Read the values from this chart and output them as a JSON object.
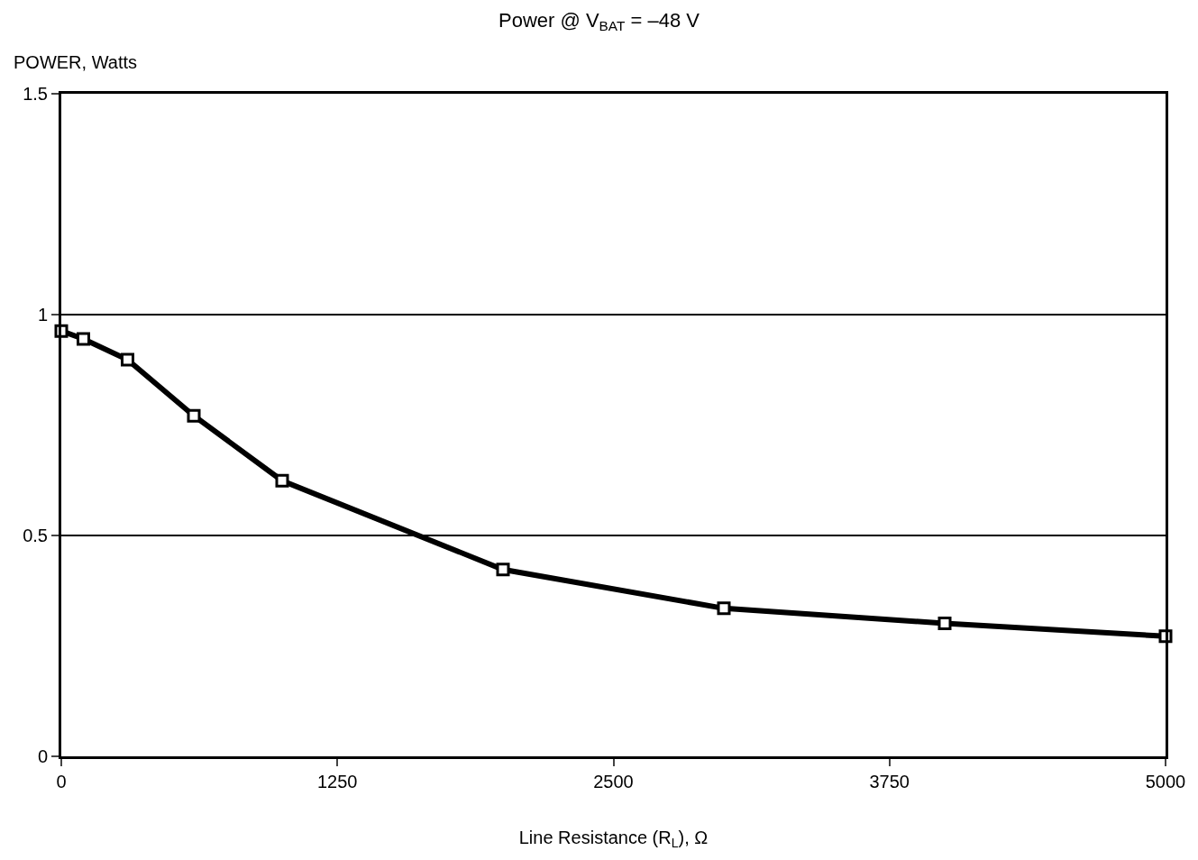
{
  "chart_data": {
    "type": "line",
    "title": "Power @ V$_{BAT}$ = –48 V",
    "xlabel": "Line Resistance (R$_{L}$), Ω",
    "ylabel": "POWER, Watts",
    "x": [
      0,
      100,
      300,
      600,
      1000,
      2000,
      3000,
      4000,
      5000
    ],
    "series": [
      {
        "color": "#000000",
        "values": [
          0.963,
          0.945,
          0.898,
          0.771,
          0.624,
          0.423,
          0.335,
          0.301,
          0.272
        ]
      }
    ],
    "xlim": [
      0,
      5000
    ],
    "xticks": [
      0,
      1250,
      2500,
      3750,
      5000
    ],
    "ylim": [
      0,
      1.5
    ],
    "yticks": [
      0,
      0.5,
      1,
      1.5
    ],
    "grid": "y",
    "marker": "square",
    "line_style": "solid",
    "legend": false
  }
}
